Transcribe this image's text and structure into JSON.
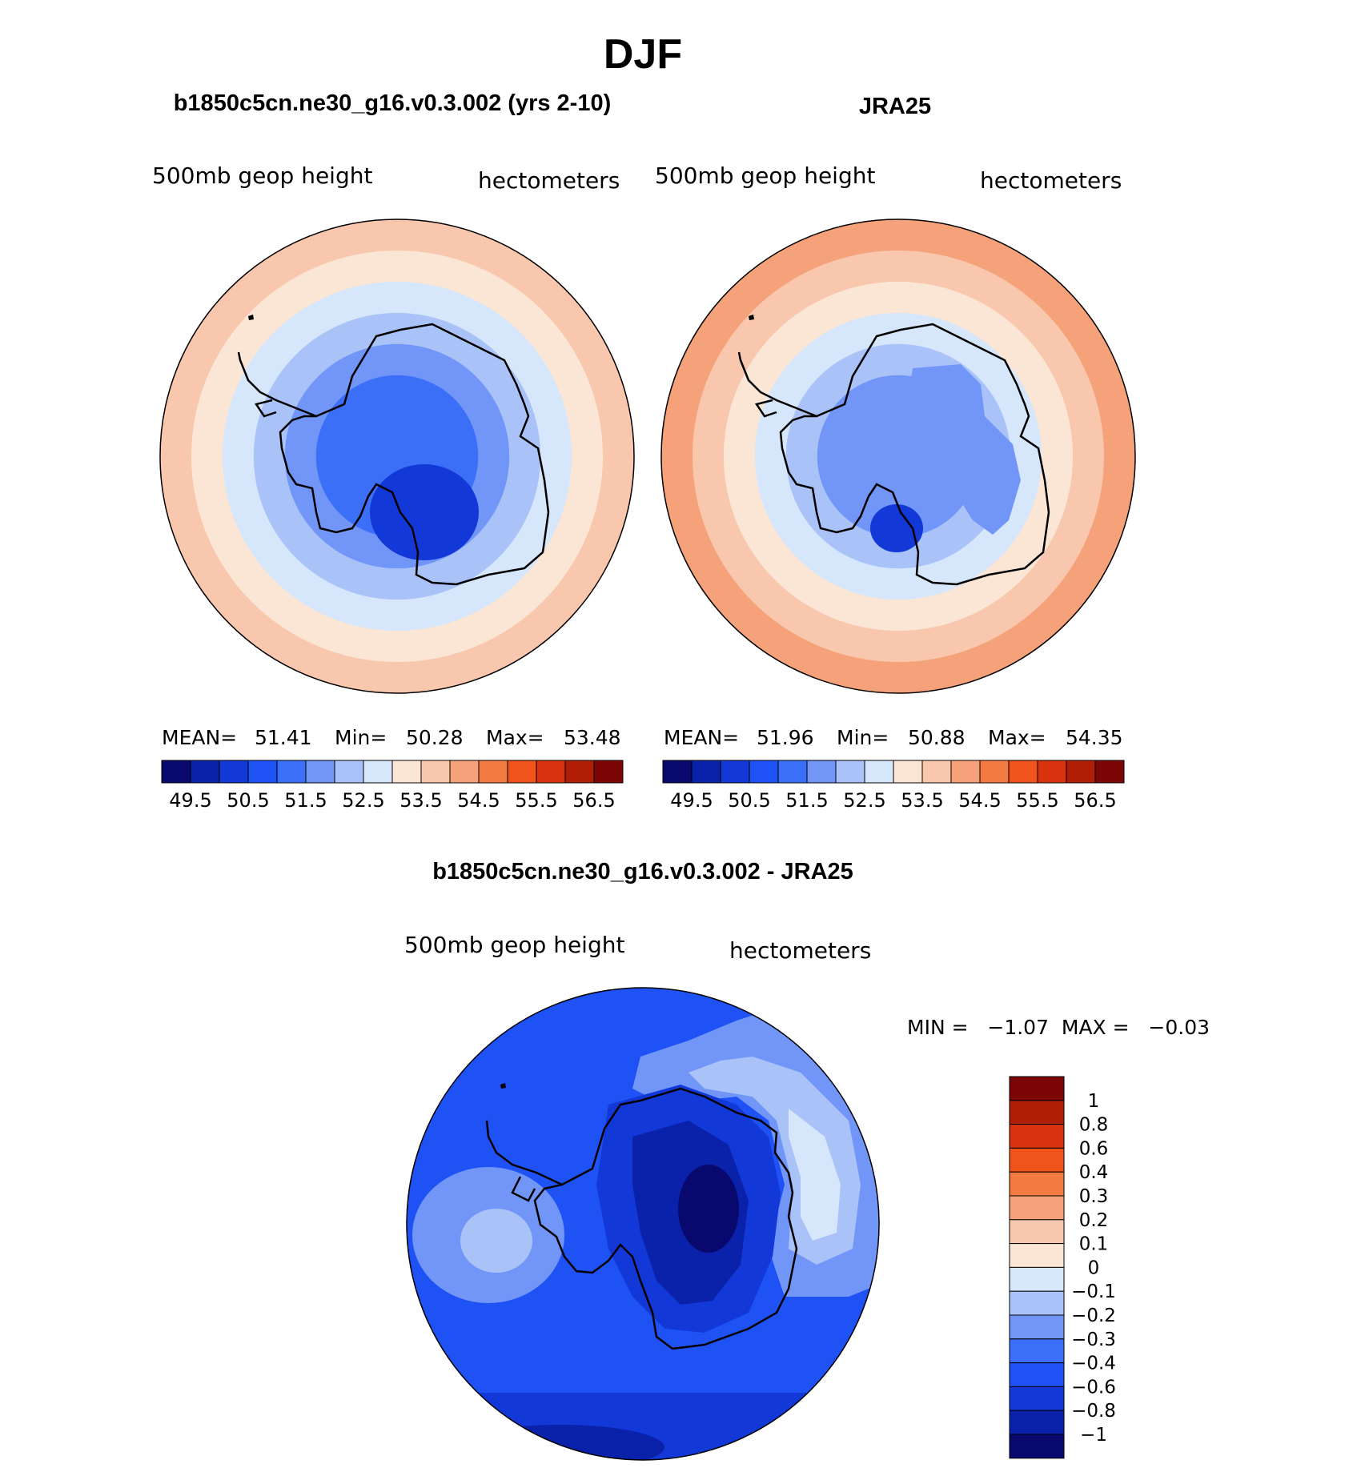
{
  "chart_data": [
    {
      "type": "heatmap",
      "projection": "south-polar-stereographic",
      "season": "DJF",
      "title": "b1850c5cn.ne30_g16.v0.3.002 (yrs 2-10)",
      "left_label": "500mb  geop  height",
      "right_label": "hectometers",
      "stats": {
        "mean_label": "MEAN=",
        "mean": "51.41",
        "min_label": "Min=",
        "min": "50.28",
        "max_label": "Max=",
        "max": "53.48"
      },
      "contour_levels": [
        49.5,
        50,
        50.5,
        51,
        51.5,
        52,
        52.5,
        53,
        53.5,
        54,
        54.5,
        55,
        55.5,
        56,
        56.5
      ],
      "colorbar_labels": [
        "49.5",
        "50.5",
        "51.5",
        "52.5",
        "53.5",
        "54.5",
        "55.5",
        "56.5"
      ],
      "rings_outer_to_inner": [
        9,
        8,
        7,
        6,
        5,
        4
      ]
    },
    {
      "type": "heatmap",
      "projection": "south-polar-stereographic",
      "season": "DJF",
      "title": "JRA25",
      "left_label": "500mb  geop  height",
      "right_label": "hectometers",
      "stats": {
        "mean_label": "MEAN=",
        "mean": "51.96",
        "min_label": "Min=",
        "min": "50.88",
        "max_label": "Max=",
        "max": "54.35"
      },
      "contour_levels": [
        49.5,
        50,
        50.5,
        51,
        51.5,
        52,
        52.5,
        53,
        53.5,
        54,
        54.5,
        55,
        55.5,
        56,
        56.5
      ],
      "colorbar_labels": [
        "49.5",
        "50.5",
        "51.5",
        "52.5",
        "53.5",
        "54.5",
        "55.5",
        "56.5"
      ],
      "rings_outer_to_inner": [
        10,
        9,
        8,
        7,
        6,
        5
      ]
    },
    {
      "type": "heatmap",
      "projection": "south-polar-stereographic",
      "season": "DJF",
      "title": "b1850c5cn.ne30_g16.v0.3.002 - JRA25",
      "left_label": "500mb  geop  height",
      "right_label": "hectometers",
      "min_max_text": "MIN =   −1.07  MAX =   −0.03",
      "stats": {
        "min": -1.07,
        "max": -0.03
      },
      "colorbar_labels": [
        "1",
        "0.8",
        "0.6",
        "0.4",
        "0.3",
        "0.2",
        "0.1",
        "0",
        "−0.1",
        "−0.2",
        "−0.3",
        "−0.4",
        "−0.6",
        "−0.8",
        "−1"
      ]
    }
  ],
  "figure": {
    "title": "DJF",
    "palette": [
      "#08086e",
      "#0a22aa",
      "#1238d8",
      "#1e52f5",
      "#3b6ff7",
      "#7196f8",
      "#a9c3f9",
      "#d6e6fb",
      "#fbe6d6",
      "#f8c7ad",
      "#f5a27a",
      "#f37a40",
      "#f0541a",
      "#d8320e",
      "#b01e08",
      "#7c0606"
    ],
    "diff_palette_top_to_bottom": [
      "#7c0606",
      "#b01e08",
      "#d8320e",
      "#f0541a",
      "#f37a40",
      "#f5a27a",
      "#f8c7ad",
      "#fbe6d6",
      "#d6e6fb",
      "#a9c3f9",
      "#7196f8",
      "#3b6ff7",
      "#1e52f5",
      "#1238d8",
      "#0a22aa",
      "#08086e"
    ]
  }
}
